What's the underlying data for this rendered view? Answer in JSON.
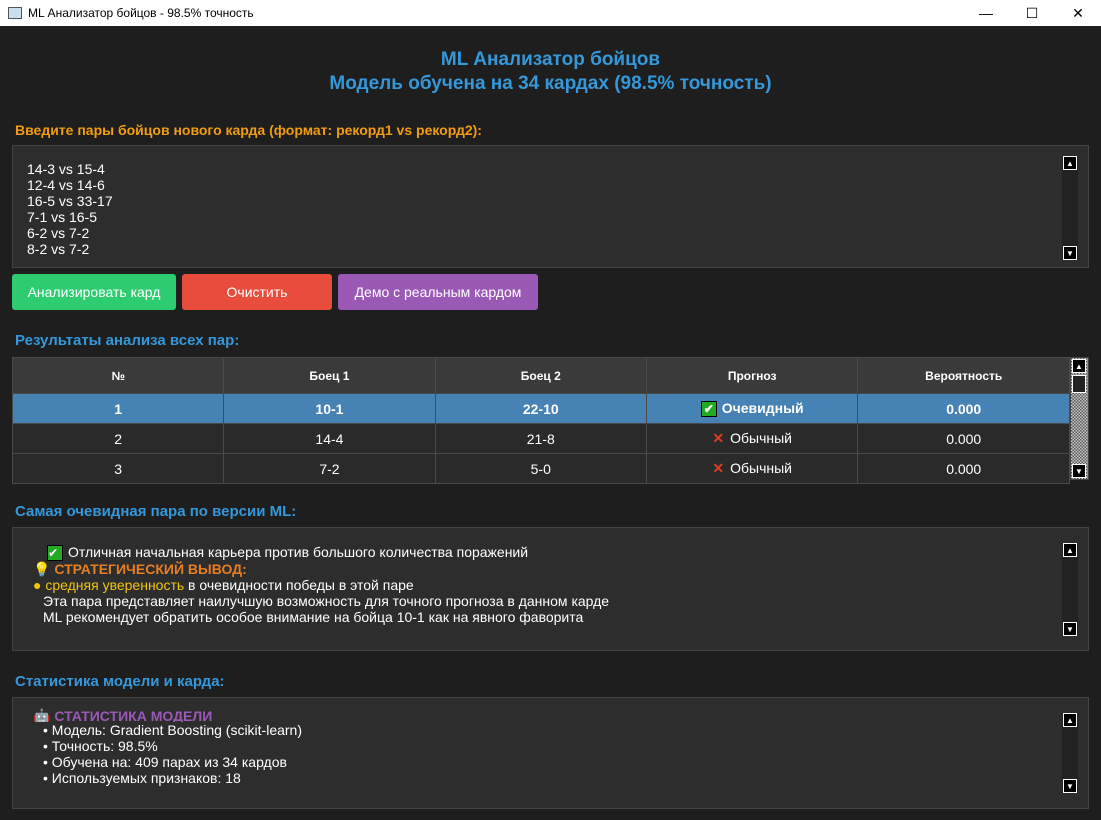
{
  "window": {
    "title": "ML Анализатор бойцов - 98.5% точность"
  },
  "header": {
    "title": "ML Анализатор бойцов",
    "subtitle": "Модель обучена на 34 кардах (98.5% точность)"
  },
  "input": {
    "label": "Введите пары бойцов нового карда (формат: рекорд1 vs рекорд2):",
    "lines": [
      "14-3 vs 15-4",
      "12-4 vs 14-6",
      "16-5 vs 33-17",
      "7-1 vs 16-5",
      "6-2 vs 7-2",
      "8-2 vs 7-2"
    ]
  },
  "buttons": {
    "analyze": "Анализировать кард",
    "clear": "Очистить",
    "demo": "Демо с реальным кардом"
  },
  "colors": {
    "analyze": "#2ecc71",
    "clear": "#e74c3c",
    "demo": "#9b59b6",
    "accent": "#3498db",
    "orange": "#f39c12",
    "selected": "#4682b4"
  },
  "results": {
    "label": "Результаты анализа всех пар:",
    "columns": [
      "№",
      "Боец 1",
      "Боец 2",
      "Прогноз",
      "Вероятность"
    ],
    "rows": [
      {
        "n": "1",
        "f1": "10-1",
        "f2": "22-10",
        "pred": "Очевидный",
        "prob": "0.000",
        "icon": "check"
      },
      {
        "n": "2",
        "f1": "14-4",
        "f2": "21-8",
        "pred": "Обычный",
        "prob": "0.000",
        "icon": "cross"
      },
      {
        "n": "3",
        "f1": "7-2",
        "f2": "5-0",
        "pred": "Обычный",
        "prob": "0.000",
        "icon": "cross"
      }
    ]
  },
  "best": {
    "label": "Самая очевидная пара по версии ML:",
    "reason": "Отличная начальная карьера против большого количества поражений",
    "conclusion_title": "СТРАТЕГИЧЕСКИЙ ВЫВОД:",
    "confidence": "средняя уверенность",
    "confidence_rest": " в очевидности победы в этой паре",
    "line1": "Эта пара представляет наилучшую возможность для точного прогноза в данном карде",
    "line2": "ML рекомендует обратить особое внимание на бойца 10-1 как на явного фаворита"
  },
  "stats": {
    "label": "Статистика модели и карда:",
    "title": "СТАТИСТИКА МОДЕЛИ",
    "items": [
      "• Модель: Gradient Boosting (scikit-learn)",
      "• Точность: 98.5%",
      "• Обучена на: 409 парах из 34 кардов",
      "• Используемых признаков: 18"
    ]
  }
}
